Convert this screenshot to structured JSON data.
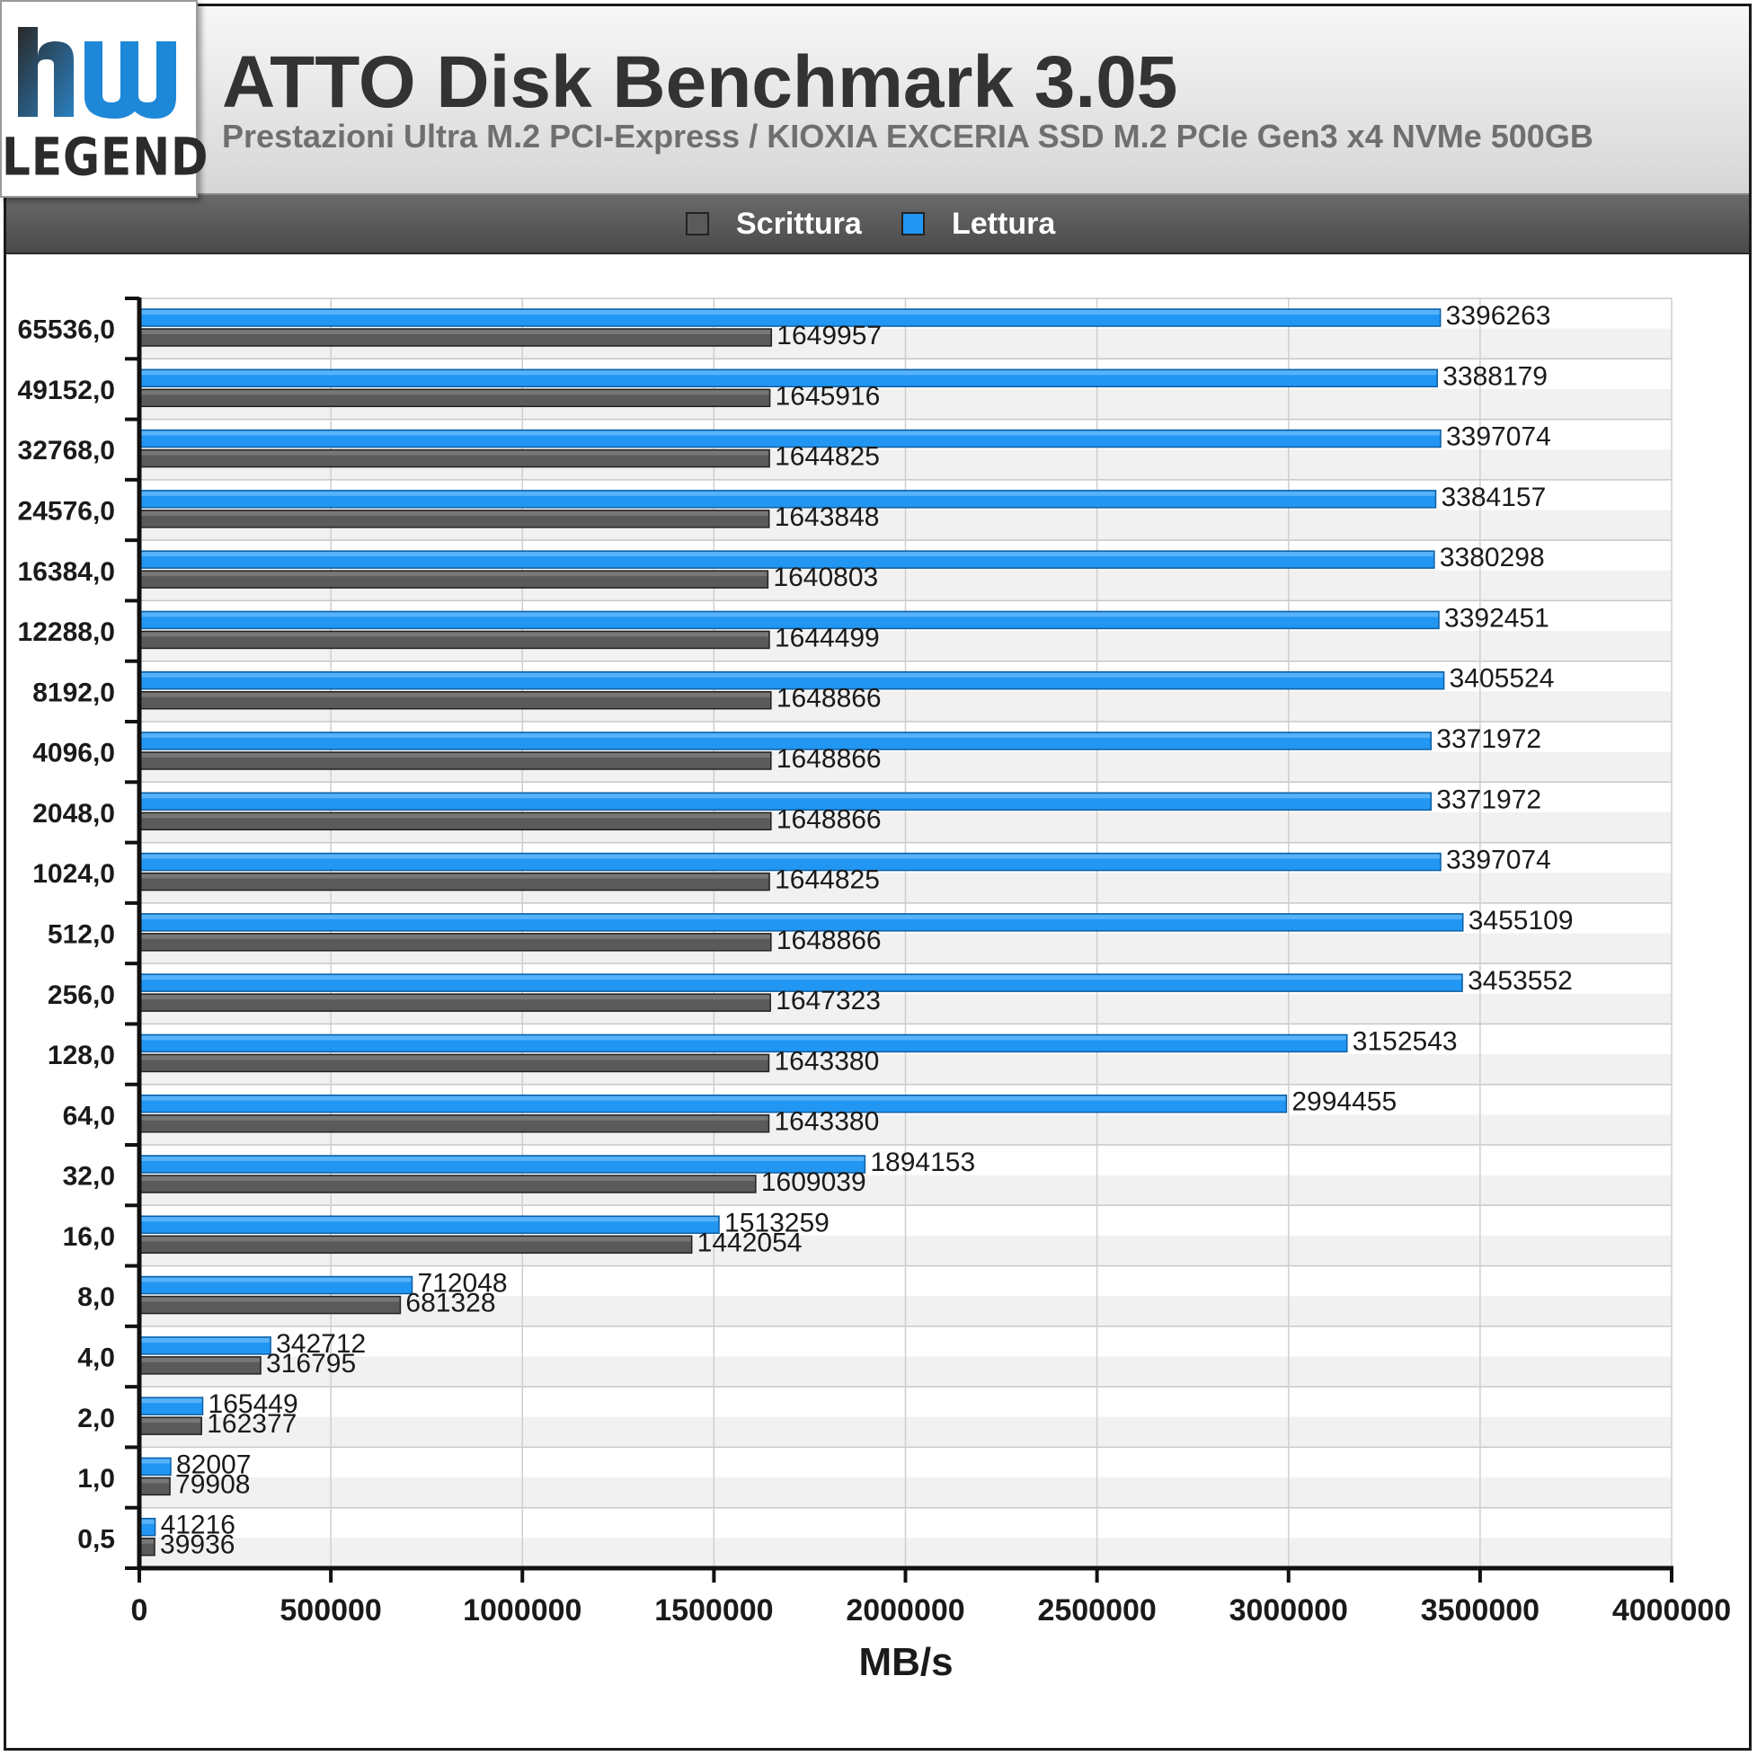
{
  "header": {
    "logo_text": "LEGEND",
    "title": "ATTO Disk Benchmark 3.05",
    "subtitle": "Prestazioni Ultra M.2 PCI-Express / KIOXIA EXCERIA SSD M.2 PCIe Gen3 x4 NVMe 500GB"
  },
  "legend": {
    "items": [
      {
        "label": "Scrittura",
        "color": "#5a5a5a"
      },
      {
        "label": "Lettura",
        "color": "#2196f3"
      }
    ]
  },
  "chart_data": {
    "type": "bar",
    "orientation": "horizontal",
    "title": "ATTO Disk Benchmark 3.05",
    "xlabel": "MB/s",
    "ylabel": "",
    "xlim": [
      0,
      4000000
    ],
    "xticks": [
      0,
      500000,
      1000000,
      1500000,
      2000000,
      2500000,
      3000000,
      3500000,
      4000000
    ],
    "grid": true,
    "legend_position": "top",
    "categories": [
      "65536,0",
      "49152,0",
      "32768,0",
      "24576,0",
      "16384,0",
      "12288,0",
      "8192,0",
      "4096,0",
      "2048,0",
      "1024,0",
      "512,0",
      "256,0",
      "128,0",
      "64,0",
      "32,0",
      "16,0",
      "8,0",
      "4,0",
      "2,0",
      "1,0",
      "0,5"
    ],
    "series": [
      {
        "name": "Lettura",
        "color": "#2196f3",
        "values": [
          3396263,
          3388179,
          3397074,
          3384157,
          3380298,
          3392451,
          3405524,
          3371972,
          3371972,
          3397074,
          3455109,
          3453552,
          3152543,
          2994455,
          1894153,
          1513259,
          712048,
          342712,
          165449,
          82007,
          41216
        ]
      },
      {
        "name": "Scrittura",
        "color": "#5a5a5a",
        "values": [
          1649957,
          1645916,
          1644825,
          1643848,
          1640803,
          1644499,
          1648866,
          1648866,
          1648866,
          1644825,
          1648866,
          1647323,
          1643380,
          1643380,
          1609039,
          1442054,
          681328,
          316795,
          162377,
          79908,
          39936
        ]
      }
    ]
  }
}
